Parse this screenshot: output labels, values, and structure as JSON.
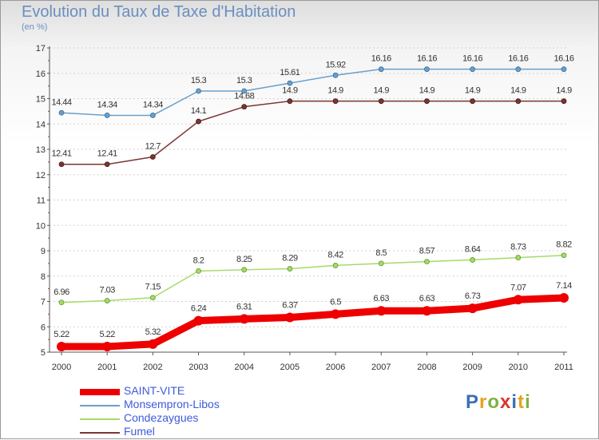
{
  "title": "Evolution du Taux de Taxe d'Habitation",
  "subtitle": "(en %)",
  "logo": {
    "text": "Proxiti",
    "letter_colors": [
      "#3b6fb6",
      "#e8a21b",
      "#7cb342",
      "#d9342b",
      "#3b6fb6",
      "#e8a21b",
      "#7cb342"
    ]
  },
  "chart_data": {
    "type": "line",
    "x": [
      "2000",
      "2001",
      "2002",
      "2003",
      "2004",
      "2005",
      "2006",
      "2007",
      "2008",
      "2009",
      "2010",
      "2011"
    ],
    "ylim": [
      5,
      17
    ],
    "yticks": [
      "5",
      "6",
      "7",
      "8",
      "9",
      "10",
      "11",
      "12",
      "13",
      "14",
      "15",
      "16",
      "17"
    ],
    "grid": "horizontal dotted",
    "legend_position": "bottom-left",
    "series": [
      {
        "name": "SAINT-VITE",
        "color": "#ee0000",
        "values": [
          5.22,
          5.22,
          5.32,
          6.24,
          6.31,
          6.37,
          6.5,
          6.63,
          6.63,
          6.73,
          7.07,
          7.14
        ],
        "labels": [
          "5.22",
          "5.22",
          "5.32",
          "6.24",
          "6.31",
          "6.37",
          "6.5",
          "6.63",
          "6.63",
          "6.73",
          "7.07",
          "7.14"
        ]
      },
      {
        "name": "Monsempron-Libos",
        "color": "#6a9fcc",
        "values": [
          14.44,
          14.34,
          14.34,
          15.3,
          15.3,
          15.61,
          15.92,
          16.16,
          16.16,
          16.16,
          16.16,
          16.16
        ],
        "labels": [
          "14.44",
          "14.34",
          "14.34",
          "15.3",
          "15.3",
          "15.61",
          "15.92",
          "16.16",
          "16.16",
          "16.16",
          "16.16",
          "16.16"
        ]
      },
      {
        "name": "Condezaygues",
        "color": "#a6d96a",
        "values": [
          6.96,
          7.03,
          7.15,
          8.2,
          8.25,
          8.29,
          8.42,
          8.5,
          8.57,
          8.64,
          8.73,
          8.82
        ],
        "labels": [
          "6.96",
          "7.03",
          "7.15",
          "8.2",
          "8.25",
          "8.29",
          "8.42",
          "8.5",
          "8.57",
          "8.64",
          "8.73",
          "8.82"
        ]
      },
      {
        "name": "Fumel",
        "color": "#7a3535",
        "values": [
          12.41,
          12.41,
          12.7,
          14.1,
          14.68,
          14.9,
          14.9,
          14.9,
          14.9,
          14.9,
          14.9,
          14.9
        ],
        "labels": [
          "12.41",
          "12.41",
          "12.7",
          "14.1",
          "14.68",
          "14.9",
          "14.9",
          "14.9",
          "14.9",
          "14.9",
          "14.9",
          "14.9"
        ]
      }
    ]
  }
}
